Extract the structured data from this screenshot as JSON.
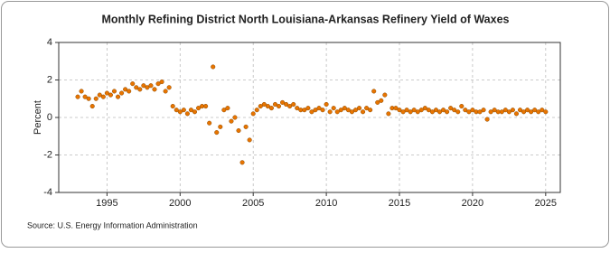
{
  "chart_data": {
    "type": "scatter",
    "title": "Monthly Refining District North Louisiana-Arkansas Refinery Yield of Waxes",
    "ylabel": "Percent",
    "source": "Source: U.S. Energy Information Administration",
    "color": "#e87400",
    "grid": true,
    "xlim": [
      1991.7,
      2026
    ],
    "xticks": [
      1995,
      2000,
      2005,
      2010,
      2015,
      2020,
      2025
    ],
    "ylim": [
      -4,
      4
    ],
    "yticks": [
      -4,
      -2,
      0,
      2,
      4
    ],
    "x": [
      1993,
      1993.25,
      1993.5,
      1993.75,
      1994,
      1994.25,
      1994.5,
      1994.75,
      1995,
      1995.25,
      1995.5,
      1995.75,
      1996,
      1996.25,
      1996.5,
      1996.75,
      1997,
      1997.25,
      1997.5,
      1997.75,
      1998,
      1998.25,
      1998.5,
      1998.75,
      1999,
      1999.25,
      1999.5,
      1999.75,
      2000,
      2000.25,
      2000.5,
      2000.75,
      2001,
      2001.25,
      2001.5,
      2001.75,
      2002,
      2002.25,
      2002.5,
      2002.75,
      2003,
      2003.25,
      2003.5,
      2003.75,
      2004,
      2004.25,
      2004.5,
      2004.75,
      2005,
      2005.25,
      2005.5,
      2005.75,
      2006,
      2006.25,
      2006.5,
      2006.75,
      2007,
      2007.25,
      2007.5,
      2007.75,
      2008,
      2008.25,
      2008.5,
      2008.75,
      2009,
      2009.25,
      2009.5,
      2009.75,
      2010,
      2010.25,
      2010.5,
      2010.75,
      2011,
      2011.25,
      2011.5,
      2011.75,
      2012,
      2012.25,
      2012.5,
      2012.75,
      2013,
      2013.25,
      2013.5,
      2013.75,
      2014,
      2014.25,
      2014.5,
      2014.75,
      2015,
      2015.25,
      2015.5,
      2015.75,
      2016,
      2016.25,
      2016.5,
      2016.75,
      2017,
      2017.25,
      2017.5,
      2017.75,
      2018,
      2018.25,
      2018.5,
      2018.75,
      2019,
      2019.25,
      2019.5,
      2019.75,
      2020,
      2020.25,
      2020.5,
      2020.75,
      2021,
      2021.25,
      2021.5,
      2021.75,
      2022,
      2022.25,
      2022.5,
      2022.75,
      2023,
      2023.25,
      2023.5,
      2023.75,
      2024,
      2024.25,
      2024.5,
      2024.75,
      2025
    ],
    "values": [
      1.1,
      1.4,
      1.1,
      1.0,
      0.6,
      1.0,
      1.2,
      1.1,
      1.3,
      1.2,
      1.4,
      1.1,
      1.3,
      1.5,
      1.4,
      1.8,
      1.6,
      1.5,
      1.7,
      1.6,
      1.7,
      1.5,
      1.8,
      1.9,
      1.4,
      1.6,
      0.6,
      0.4,
      0.3,
      0.4,
      0.2,
      0.4,
      0.3,
      0.5,
      0.6,
      0.6,
      -0.3,
      2.7,
      -0.8,
      -0.5,
      0.4,
      0.5,
      -0.2,
      0.0,
      -0.7,
      -2.4,
      -0.5,
      -1.2,
      0.2,
      0.4,
      0.6,
      0.7,
      0.6,
      0.5,
      0.7,
      0.6,
      0.8,
      0.7,
      0.6,
      0.7,
      0.5,
      0.4,
      0.4,
      0.5,
      0.3,
      0.4,
      0.5,
      0.4,
      0.7,
      0.3,
      0.5,
      0.3,
      0.4,
      0.5,
      0.4,
      0.3,
      0.4,
      0.5,
      0.3,
      0.5,
      0.4,
      1.4,
      0.8,
      0.9,
      1.2,
      0.2,
      0.5,
      0.5,
      0.4,
      0.3,
      0.4,
      0.3,
      0.4,
      0.3,
      0.4,
      0.5,
      0.4,
      0.3,
      0.4,
      0.3,
      0.4,
      0.3,
      0.5,
      0.4,
      0.3,
      0.6,
      0.4,
      0.3,
      0.4,
      0.3,
      0.3,
      0.4,
      -0.1,
      0.3,
      0.4,
      0.3,
      0.3,
      0.4,
      0.3,
      0.4,
      0.2,
      0.4,
      0.3,
      0.4,
      0.3,
      0.4,
      0.3,
      0.4,
      0.3
    ]
  }
}
